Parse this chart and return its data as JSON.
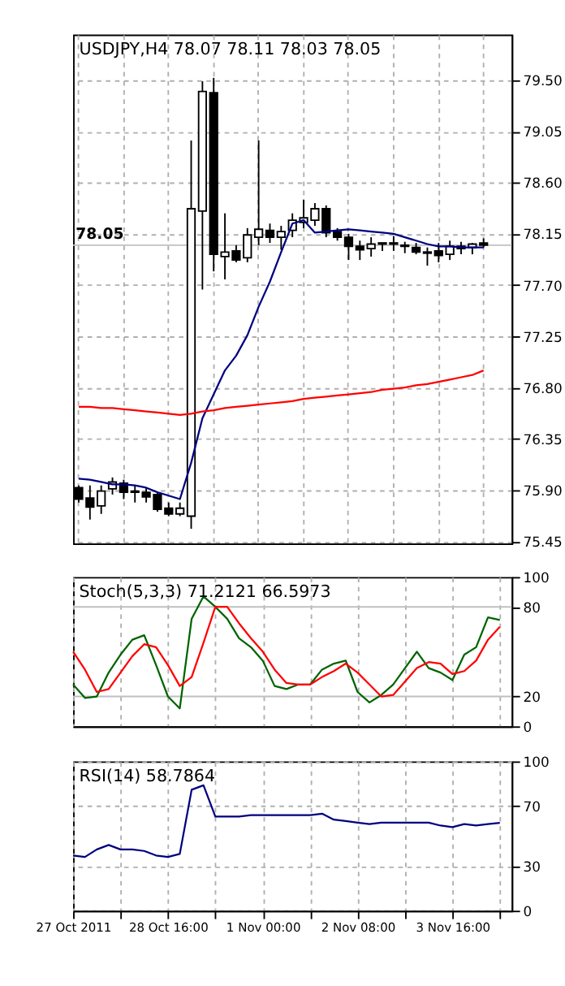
{
  "chart_data": [
    {
      "type": "candlestick",
      "title": "USDJPY,H4  78.07 78.11 78.03 78.05",
      "categories": [
        null,
        null,
        null,
        null,
        null,
        null,
        null,
        null,
        null,
        null,
        null,
        null,
        null,
        null,
        null,
        null,
        null,
        null,
        null,
        null,
        null,
        null,
        null,
        null,
        null,
        null,
        null,
        null,
        null,
        null,
        null,
        null,
        null,
        null,
        null,
        null,
        null
      ],
      "ohlc": [
        [
          75.92,
          75.94,
          75.79,
          75.82
        ],
        [
          75.83,
          75.94,
          75.64,
          75.75
        ],
        [
          75.76,
          75.94,
          75.69,
          75.89
        ],
        [
          75.91,
          76.01,
          75.86,
          75.97
        ],
        [
          75.96,
          75.99,
          75.82,
          75.88
        ],
        [
          75.89,
          75.94,
          75.79,
          75.88
        ],
        [
          75.88,
          75.92,
          75.79,
          75.84
        ],
        [
          75.86,
          75.88,
          75.71,
          75.73
        ],
        [
          75.74,
          75.79,
          75.67,
          75.69
        ],
        [
          75.69,
          75.79,
          75.67,
          75.74
        ],
        [
          75.67,
          78.97,
          75.56,
          78.37
        ],
        [
          78.35,
          79.49,
          77.66,
          79.4
        ],
        [
          79.39,
          79.52,
          77.82,
          77.97
        ],
        [
          77.95,
          78.33,
          77.75,
          77.99
        ],
        [
          78.0,
          78.05,
          77.9,
          77.92
        ],
        [
          77.94,
          78.2,
          77.9,
          78.14
        ],
        [
          78.12,
          78.97,
          78.05,
          78.19
        ],
        [
          78.18,
          78.24,
          78.07,
          78.12
        ],
        [
          78.12,
          78.22,
          78.01,
          78.17
        ],
        [
          78.18,
          78.33,
          78.12,
          78.27
        ],
        [
          78.25,
          78.45,
          78.2,
          78.29
        ],
        [
          78.27,
          78.42,
          78.22,
          78.37
        ],
        [
          78.37,
          78.4,
          78.12,
          78.16
        ],
        [
          78.17,
          78.2,
          78.09,
          78.12
        ],
        [
          78.12,
          78.15,
          77.92,
          78.04
        ],
        [
          78.04,
          78.09,
          77.92,
          78.01
        ],
        [
          78.02,
          78.12,
          77.95,
          78.06
        ],
        [
          78.06,
          78.07,
          78.0,
          78.07
        ],
        [
          78.06,
          78.13,
          78.0,
          78.07
        ],
        [
          78.05,
          78.08,
          77.98,
          78.04
        ],
        [
          78.03,
          78.07,
          77.97,
          77.99
        ],
        [
          77.99,
          78.03,
          77.87,
          77.98
        ],
        [
          78.0,
          78.07,
          77.9,
          77.96
        ],
        [
          77.97,
          78.09,
          77.92,
          78.04
        ],
        [
          78.04,
          78.08,
          77.97,
          78.02
        ],
        [
          78.03,
          78.07,
          77.97,
          78.06
        ],
        [
          78.07,
          78.11,
          78.03,
          78.05
        ]
      ],
      "colors": [
        "#000000",
        "#000000",
        "#ffffff",
        "#ffffff",
        "#000000",
        "#000000",
        "#000000",
        "#000000",
        "#000000",
        "#ffffff",
        "#ffffff",
        "#ffffff",
        "#000000",
        "#ffffff",
        "#000000",
        "#ffffff",
        "#ffffff",
        "#000000",
        "#ffffff",
        "#ffffff",
        "#ffffff",
        "#ffffff",
        "#000000",
        "#000000",
        "#000000",
        "#000000",
        "#ffffff",
        "#ffffff",
        "#ffffff",
        "#000000",
        "#000000",
        "#000000",
        "#000000",
        "#ffffff",
        "#000000",
        "#ffffff",
        "#000000"
      ],
      "series": [
        {
          "type": "line",
          "color": "#000080",
          "values": [
            76.0,
            75.99,
            75.97,
            75.95,
            75.95,
            75.94,
            75.92,
            75.88,
            75.85,
            75.82,
            76.14,
            76.53,
            76.74,
            76.95,
            77.08,
            77.26,
            77.51,
            77.73,
            77.99,
            78.24,
            78.27,
            78.16,
            78.17,
            78.18,
            78.19,
            78.18,
            78.17,
            78.16,
            78.15,
            78.12,
            78.09,
            78.06,
            78.04,
            78.04,
            78.03,
            78.03,
            78.03
          ]
        },
        {
          "type": "line",
          "color": "#ff0000",
          "values": [
            76.63,
            76.63,
            76.62,
            76.62,
            76.61,
            76.6,
            76.59,
            76.58,
            76.57,
            76.56,
            76.57,
            76.59,
            76.6,
            76.62,
            76.63,
            76.64,
            76.65,
            76.66,
            76.67,
            76.68,
            76.7,
            76.71,
            76.72,
            76.73,
            76.74,
            76.75,
            76.76,
            76.78,
            76.79,
            76.8,
            76.82,
            76.83,
            76.85,
            76.87,
            76.89,
            76.91,
            76.95
          ]
        }
      ],
      "ylim": [
        75.43,
        79.9
      ],
      "yticks": [
        {
          "value": 75.45,
          "label": "75.45"
        },
        {
          "value": 75.9,
          "label": "75.90"
        },
        {
          "value": 76.35,
          "label": "76.35"
        },
        {
          "value": 76.8,
          "label": "76.80"
        },
        {
          "value": 77.25,
          "label": "77.25"
        },
        {
          "value": 77.7,
          "label": "77.70"
        },
        {
          "value": 78.15,
          "label": "78.15"
        },
        {
          "value": 78.6,
          "label": "78.60"
        },
        {
          "value": 79.05,
          "label": "79.05"
        },
        {
          "value": 79.5,
          "label": "79.50"
        }
      ],
      "ref_lines": [
        {
          "axis": "y",
          "value": 78.05,
          "label": "78.05",
          "color": "#c0c0c0"
        }
      ],
      "grid": true,
      "tick_labels": "y"
    },
    {
      "type": "line",
      "title": "Stoch(5,3,3) 71.2121 66.5973",
      "categories": [
        null,
        null,
        null,
        null,
        null,
        null,
        null,
        null,
        null,
        null,
        null,
        null,
        null,
        null,
        null,
        null,
        null,
        null,
        null,
        null,
        null,
        null,
        null,
        null,
        null,
        null,
        null,
        null,
        null,
        null,
        null,
        null,
        null,
        null,
        null,
        null,
        null
      ],
      "series": [
        {
          "color": "#006400",
          "values": [
            28,
            19,
            20,
            36,
            48,
            58,
            61,
            41,
            20,
            12,
            72,
            87,
            80,
            72,
            59,
            53,
            44,
            27,
            25,
            28,
            28,
            38,
            42,
            44,
            23,
            16,
            21,
            28,
            39,
            50,
            39,
            36,
            31,
            48,
            53,
            73,
            71.2121
          ]
        },
        {
          "color": "#ff0000",
          "values": [
            50,
            38,
            23,
            25,
            36,
            47,
            55,
            53,
            41,
            27,
            33,
            56,
            80,
            80,
            69,
            59,
            50,
            38,
            29,
            28,
            28,
            33,
            37,
            42,
            36,
            28,
            20,
            21,
            30,
            39,
            43,
            42,
            35,
            37,
            44,
            58,
            66.5973
          ]
        }
      ],
      "ylim": [
        0,
        100
      ],
      "yticks": [
        0,
        20,
        80,
        100
      ],
      "ref_lines": [
        {
          "axis": "y",
          "value": 20,
          "color": "#c0c0c0"
        },
        {
          "axis": "y",
          "value": 80,
          "color": "#c0c0c0"
        }
      ],
      "grid": "x",
      "tick_labels": "y"
    },
    {
      "type": "line",
      "title": "RSI(14) 58.7864",
      "categories": [
        "27 Oct 2011",
        null,
        null,
        null,
        null,
        null,
        null,
        null,
        "28 Oct 16:00",
        null,
        null,
        null,
        null,
        null,
        null,
        null,
        "1 Nov 00:00",
        null,
        null,
        null,
        null,
        null,
        null,
        null,
        "2 Nov 08:00",
        null,
        null,
        null,
        null,
        null,
        null,
        null,
        "3 Nov 16:00",
        null,
        null,
        null,
        null
      ],
      "series": [
        {
          "color": "#000080",
          "values": [
            37,
            36,
            41,
            44,
            41,
            41,
            40,
            37,
            36,
            38,
            81,
            84,
            63,
            63,
            63,
            64,
            64,
            64,
            64,
            64,
            64,
            65,
            61,
            60,
            59,
            58,
            59,
            59,
            59,
            59,
            59,
            57,
            56,
            58,
            57,
            58,
            58.7864
          ]
        }
      ],
      "ylim": [
        0,
        100
      ],
      "yticks": [
        0,
        30,
        70,
        100
      ],
      "grid": true
    }
  ]
}
